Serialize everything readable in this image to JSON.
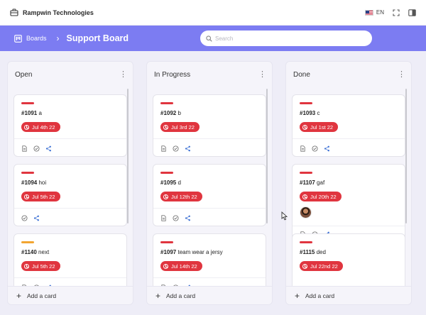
{
  "app": {
    "brand": "Rampwin Technologies",
    "lang": "EN"
  },
  "header": {
    "breadcrumb": "Boards",
    "board_title": "Support Board",
    "search_placeholder": "Search"
  },
  "colors": {
    "accent": "#7c7cf2",
    "date_chip": "#e0353f",
    "label_red": "#e0353f",
    "label_orange": "#f2a531"
  },
  "columns": [
    {
      "title": "Open",
      "add_label": "Add a card",
      "cards": [
        {
          "num": "#1091",
          "title": "a",
          "date": "Jul 4th 22",
          "label_color": "red",
          "icons": [
            "description-icon",
            "check-circle-icon",
            "share-icon"
          ]
        },
        {
          "num": "#1094",
          "title": "hoi",
          "date": "Jul 5th 22",
          "label_color": "red",
          "icons": [
            "check-circle-icon",
            "share-icon"
          ]
        },
        {
          "num": "#1140",
          "title": "next",
          "date": "Jul 5th 22",
          "label_color": "orange",
          "icons": [
            "description-icon",
            "check-circle-icon",
            "share-icon"
          ]
        }
      ]
    },
    {
      "title": "In Progress",
      "add_label": "Add a card",
      "cards": [
        {
          "num": "#1092",
          "title": "b",
          "date": "Jul 3rd 22",
          "label_color": "red",
          "icons": [
            "description-icon",
            "check-circle-icon",
            "share-icon"
          ]
        },
        {
          "num": "#1095",
          "title": "d",
          "date": "Jul 12th 22",
          "label_color": "red",
          "icons": [
            "description-icon",
            "check-circle-icon",
            "share-icon"
          ]
        },
        {
          "num": "#1097",
          "title": "team wear a jersy",
          "date": "Jul 14th 22",
          "label_color": "red",
          "icons": [
            "description-icon",
            "check-circle-icon",
            "share-icon"
          ]
        }
      ]
    },
    {
      "title": "Done",
      "add_label": "Add a card",
      "cards": [
        {
          "num": "#1093",
          "title": "c",
          "date": "Jul 1st 22",
          "label_color": "red",
          "icons": [
            "description-icon",
            "check-circle-icon",
            "share-icon"
          ]
        },
        {
          "num": "#1107",
          "title": "gaf",
          "date": "Jul 20th 22",
          "label_color": "red",
          "has_avatar": true,
          "icons": [
            "description-icon",
            "check-circle-icon",
            "share-icon"
          ]
        },
        {
          "num": "#1115",
          "title": "ded",
          "date": "Jul 22nd 22",
          "label_color": "red",
          "icons": []
        }
      ]
    }
  ]
}
